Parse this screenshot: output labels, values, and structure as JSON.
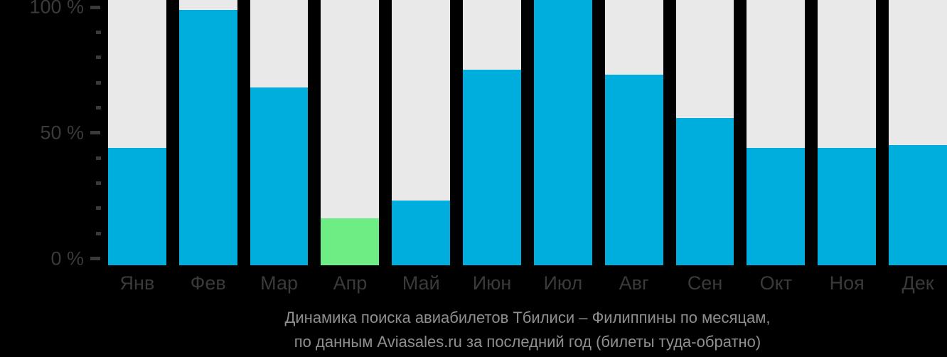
{
  "page": {
    "background": "#000000"
  },
  "colors": {
    "bar": "#00aedd",
    "bar_highlight": "#6eed85",
    "track": "#e9e9e9",
    "axis_text": "#3a3a3a",
    "tick": "#3a3a3a",
    "caption_text": "#8f8f8f"
  },
  "chart_data": {
    "type": "bar",
    "title": "Динамика поиска авиабилетов Тбилиси – Филиппины по месяцам, по данным Aviasales.ru за последний год (билеты туда-обратно)",
    "categories": [
      "Янв",
      "Фев",
      "Мар",
      "Апр",
      "Май",
      "Июн",
      "Июл",
      "Авг",
      "Сен",
      "Окт",
      "Ноя",
      "Дек"
    ],
    "values": [
      44,
      99,
      68,
      16,
      23,
      75,
      100,
      73,
      56,
      44,
      44,
      45
    ],
    "unit": "%",
    "ylim": [
      0,
      100
    ],
    "ytick_major": [
      {
        "value": 0,
        "label": "0 %"
      },
      {
        "value": 50,
        "label": "50 %"
      },
      {
        "value": 100,
        "label": "100 %"
      }
    ],
    "ytick_minor_step": 10,
    "highlight_index": 3,
    "grid": false,
    "legend": false,
    "bar_background_tracks": true
  },
  "caption": {
    "line1": "Динамика поиска авиабилетов Тбилиси – Филиппины по месяцам,",
    "line2": "по данным Aviasales.ru за последний год (билеты туда-обратно)"
  }
}
